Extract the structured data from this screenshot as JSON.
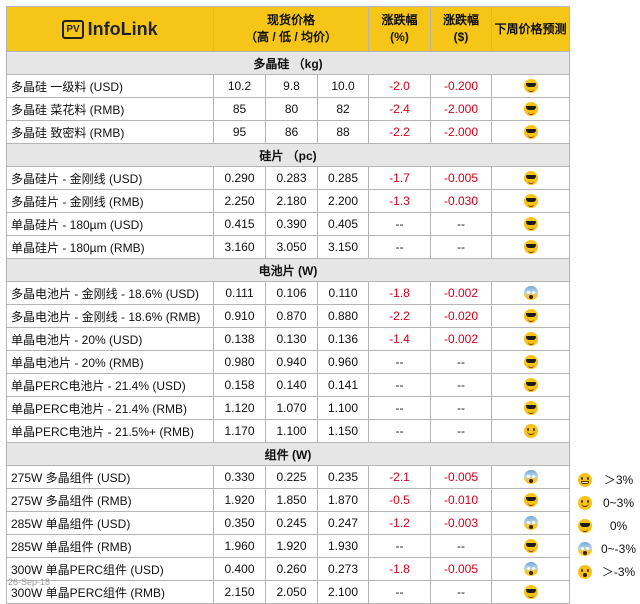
{
  "header": {
    "logo_box": "PV",
    "logo_text": "InfoLink",
    "spot_price": "现货价格",
    "spot_sub": "（高 / 低 / 均价）",
    "change": "涨跌幅",
    "change_pct": "(%)",
    "change_usd": "($)",
    "forecast": "下周价格预测"
  },
  "sections": [
    {
      "title": "多晶硅 （kg)",
      "rows": [
        {
          "name": "多晶硅 一级料 (USD)",
          "high": "10.2",
          "low": "9.8",
          "avg": "10.0",
          "pct": "-2.0",
          "amt": "-0.200",
          "icon": "sunglasses-face-icon"
        },
        {
          "name": "多晶硅 菜花料 (RMB)",
          "high": "85",
          "low": "80",
          "avg": "82",
          "pct": "-2.4",
          "amt": "-2.000",
          "icon": "sunglasses-face-icon"
        },
        {
          "name": "多晶硅 致密料 (RMB)",
          "high": "95",
          "low": "86",
          "avg": "88",
          "pct": "-2.2",
          "amt": "-2.000",
          "icon": "sunglasses-face-icon"
        }
      ]
    },
    {
      "title": "硅片 （pc)",
      "rows": [
        {
          "name": "多晶硅片 - 金刚线 (USD)",
          "high": "0.290",
          "low": "0.283",
          "avg": "0.285",
          "pct": "-1.7",
          "amt": "-0.005",
          "icon": "sunglasses-face-icon"
        },
        {
          "name": "多晶硅片 - 金刚线 (RMB)",
          "high": "2.250",
          "low": "2.180",
          "avg": "2.200",
          "pct": "-1.3",
          "amt": "-0.030",
          "icon": "sunglasses-face-icon"
        },
        {
          "name": "单晶硅片 - 180µm (USD)",
          "high": "0.415",
          "low": "0.390",
          "avg": "0.405",
          "pct": "--",
          "amt": "--",
          "icon": "sunglasses-face-icon"
        },
        {
          "name": "单晶硅片 - 180µm (RMB)",
          "high": "3.160",
          "low": "3.050",
          "avg": "3.150",
          "pct": "--",
          "amt": "--",
          "icon": "sunglasses-face-icon"
        }
      ]
    },
    {
      "title": "电池片 (W)",
      "rows": [
        {
          "name": "多晶电池片 - 金刚线 - 18.6% (USD)",
          "high": "0.111",
          "low": "0.106",
          "avg": "0.110",
          "pct": "-1.8",
          "amt": "-0.002",
          "icon": "screaming-face-icon"
        },
        {
          "name": "多晶电池片 - 金刚线 - 18.6% (RMB)",
          "high": "0.910",
          "low": "0.870",
          "avg": "0.880",
          "pct": "-2.2",
          "amt": "-0.020",
          "icon": "sunglasses-face-icon"
        },
        {
          "name": "单晶电池片 - 20% (USD)",
          "high": "0.138",
          "low": "0.130",
          "avg": "0.136",
          "pct": "-1.4",
          "amt": "-0.002",
          "icon": "sunglasses-face-icon"
        },
        {
          "name": "单晶电池片 - 20% (RMB)",
          "high": "0.980",
          "low": "0.940",
          "avg": "0.960",
          "pct": "--",
          "amt": "--",
          "icon": "sunglasses-face-icon"
        },
        {
          "name": "单晶PERC电池片 - 21.4% (USD)",
          "high": "0.158",
          "low": "0.140",
          "avg": "0.141",
          "pct": "--",
          "amt": "--",
          "icon": "sunglasses-face-icon"
        },
        {
          "name": "单晶PERC电池片 - 21.4% (RMB)",
          "high": "1.120",
          "low": "1.070",
          "avg": "1.100",
          "pct": "--",
          "amt": "--",
          "icon": "sunglasses-face-icon"
        },
        {
          "name": "单晶PERC电池片 - 21.5%+ (RMB)",
          "high": "1.170",
          "low": "1.100",
          "avg": "1.150",
          "pct": "--",
          "amt": "--",
          "icon": "smiling-face-icon"
        }
      ]
    },
    {
      "title": "组件 (W)",
      "rows": [
        {
          "name": "275W 多晶组件 (USD)",
          "high": "0.330",
          "low": "0.225",
          "avg": "0.235",
          "pct": "-2.1",
          "amt": "-0.005",
          "icon": "screaming-face-icon"
        },
        {
          "name": "275W 多晶组件 (RMB)",
          "high": "1.920",
          "low": "1.850",
          "avg": "1.870",
          "pct": "-0.5",
          "amt": "-0.010",
          "icon": "sunglasses-face-icon"
        },
        {
          "name": "285W 单晶组件 (USD)",
          "high": "0.350",
          "low": "0.245",
          "avg": "0.247",
          "pct": "-1.2",
          "amt": "-0.003",
          "icon": "screaming-face-icon"
        },
        {
          "name": "285W 单晶组件 (RMB)",
          "high": "1.960",
          "low": "1.920",
          "avg": "1.930",
          "pct": "--",
          "amt": "--",
          "icon": "sunglasses-face-icon"
        },
        {
          "name": "300W 单晶PERC组件 (USD)",
          "high": "0.400",
          "low": "0.260",
          "avg": "0.273",
          "pct": "-1.8",
          "amt": "-0.005",
          "icon": "screaming-face-icon"
        },
        {
          "name": "300W 单晶PERC组件 (RMB)",
          "high": "2.150",
          "low": "2.050",
          "avg": "2.100",
          "pct": "--",
          "amt": "--",
          "icon": "sunglasses-face-icon"
        }
      ]
    }
  ],
  "legend": [
    {
      "icon": "grinning-face-icon",
      "text": "＞3%"
    },
    {
      "icon": "smiling-face-icon",
      "text": "0~3%"
    },
    {
      "icon": "sunglasses-face-icon",
      "text": "0%"
    },
    {
      "icon": "screaming-face-icon",
      "text": "0~-3%"
    },
    {
      "icon": "shocked-face-icon",
      "text": "＞-3%"
    }
  ],
  "footer_date": "26-Sep-18",
  "colors": {
    "header_bg": "#f5c518",
    "section_bg": "#e6e6e6",
    "negative": "#d0021b"
  }
}
